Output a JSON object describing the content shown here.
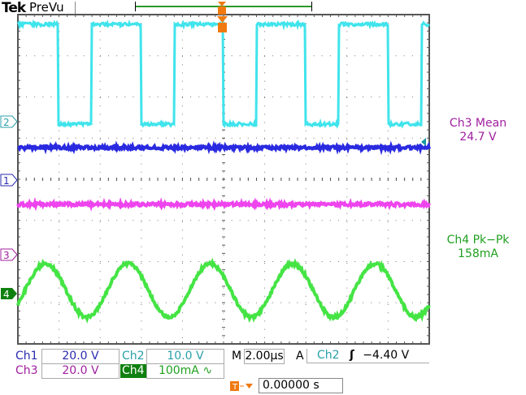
{
  "header": {
    "brand": "Tek",
    "mode": "PreVu"
  },
  "colors": {
    "ch1": "#2a2ad8",
    "ch2": "#3fe0e8",
    "ch3": "#e040e0",
    "ch4": "#3ee03e",
    "trigger": "#f07a10"
  },
  "markers": {
    "ch1": "1",
    "ch2": "2",
    "ch3": "3",
    "ch4": "4",
    "trigger": "T"
  },
  "measurements": [
    {
      "title": "Ch3 Mean",
      "value": "24.7 V",
      "color": "#a020a0"
    },
    {
      "title": "Ch4 Pk−Pk",
      "value": "158mA",
      "color": "#20a020"
    }
  ],
  "readouts": {
    "ch1": {
      "label": "Ch1",
      "scale": "20.0 V"
    },
    "ch2": {
      "label": "Ch2",
      "scale": "10.0 V"
    },
    "ch3": {
      "label": "Ch3",
      "scale": "20.0 V"
    },
    "ch4": {
      "label": "Ch4",
      "scale": "100mA",
      "coupling_icon": "ac-coupling-icon",
      "coupling_glyph": "∿"
    },
    "timebase": {
      "label": "M",
      "value": "2.00µs"
    },
    "trigger": {
      "label": "A",
      "source": "Ch2",
      "slope_glyph": "ʃ",
      "slope_icon": "rising-edge-icon",
      "level": "−4.40 V"
    },
    "position": {
      "value": "0.00000 s",
      "icon": "trigger-position-icon"
    }
  }
}
